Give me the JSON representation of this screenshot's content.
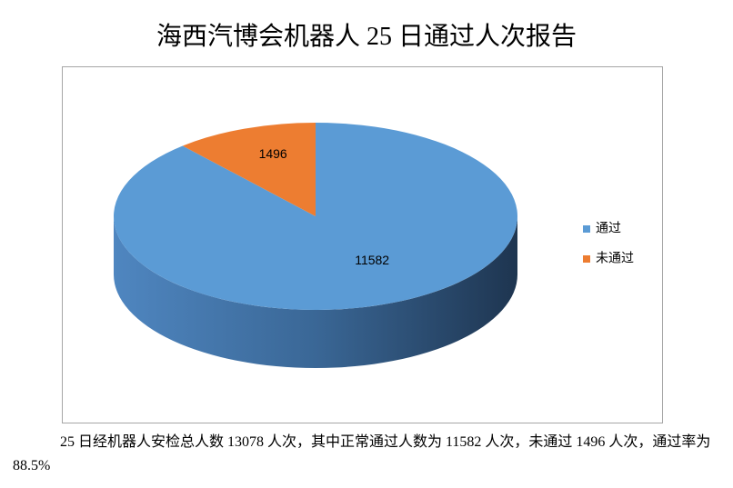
{
  "document": {
    "title": "海西汽博会机器人 25 日通过人次报告",
    "paragraph": "25 日经机器人安检总人数 13078 人次，其中正常通过人数为 11582 人次，未通过 1496 人次，通过率为 88.5%"
  },
  "chart_data": {
    "type": "pie",
    "categories": [
      "通过",
      "未通过"
    ],
    "values": [
      11582,
      1496
    ],
    "colors": [
      "#5b9bd5",
      "#ed7d31"
    ],
    "legend": "right"
  }
}
